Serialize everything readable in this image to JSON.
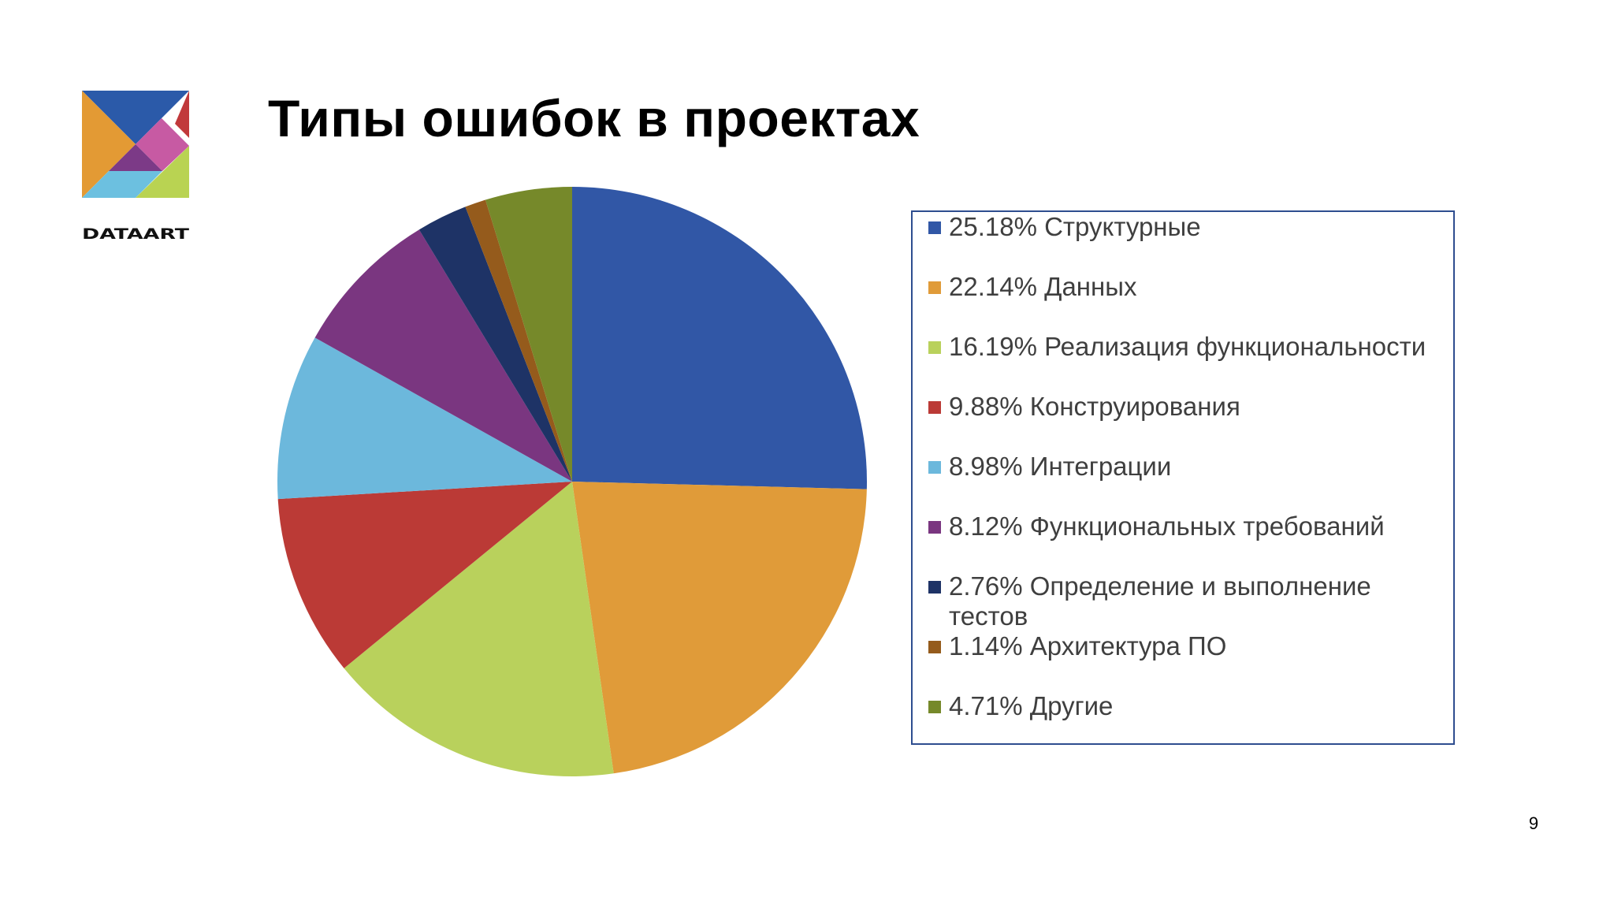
{
  "slide": {
    "title": "Типы ошибок в проектах",
    "page_number": "9"
  },
  "logo": {
    "brand_text": "DATAART",
    "icon": "dataart-tangram-logo"
  },
  "chart_data": {
    "type": "pie",
    "start": "12 o'clock, clockwise",
    "slices": [
      {
        "label": "Структурные",
        "value": 25.18,
        "legend": "25.18% Структурные",
        "color": "#3157a6"
      },
      {
        "label": "Данных",
        "value": 22.14,
        "legend": "22.14% Данных",
        "color": "#e09b39"
      },
      {
        "label": "Реализация функциональности",
        "value": 16.19,
        "legend": "16.19% Реализация функциональности",
        "color": "#b9d15c"
      },
      {
        "label": "Конструирования",
        "value": 9.88,
        "legend": "9.88% Конструирования",
        "color": "#bb3a36"
      },
      {
        "label": "Интеграции",
        "value": 8.98,
        "legend": "8.98% Интеграции",
        "color": "#6cb8dc"
      },
      {
        "label": "Функциональных требований",
        "value": 8.12,
        "legend": "8.12% Функциональных требований",
        "color": "#7a3680"
      },
      {
        "label": "Определение и выполнение тестов",
        "value": 2.76,
        "legend": "2.76% Определение и выполнение тестов",
        "color": "#1e3366"
      },
      {
        "label": "Архитектура ПО",
        "value": 1.14,
        "legend": "1.14% Архитектура ПО",
        "color": "#955b1c"
      },
      {
        "label": "Другие",
        "value": 4.71,
        "legend": "4.71% Другие",
        "color": "#76892a"
      }
    ],
    "legend_position": "right"
  }
}
